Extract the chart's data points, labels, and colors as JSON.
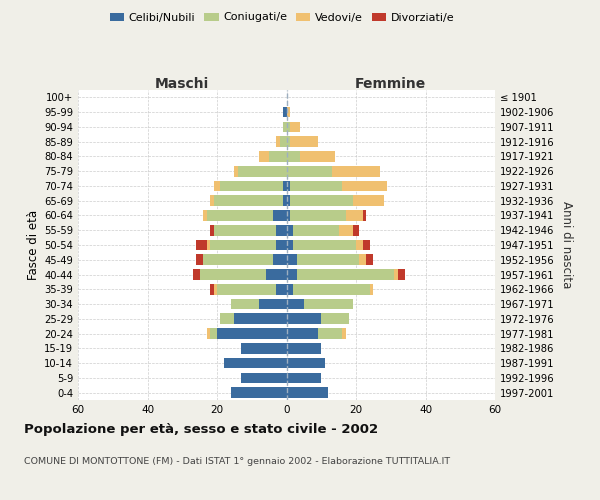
{
  "age_groups": [
    "0-4",
    "5-9",
    "10-14",
    "15-19",
    "20-24",
    "25-29",
    "30-34",
    "35-39",
    "40-44",
    "45-49",
    "50-54",
    "55-59",
    "60-64",
    "65-69",
    "70-74",
    "75-79",
    "80-84",
    "85-89",
    "90-94",
    "95-99",
    "100+"
  ],
  "birth_years": [
    "1997-2001",
    "1992-1996",
    "1987-1991",
    "1982-1986",
    "1977-1981",
    "1972-1976",
    "1967-1971",
    "1962-1966",
    "1957-1961",
    "1952-1956",
    "1947-1951",
    "1942-1946",
    "1937-1941",
    "1932-1936",
    "1927-1931",
    "1922-1926",
    "1917-1921",
    "1912-1916",
    "1907-1911",
    "1902-1906",
    "≤ 1901"
  ],
  "males": {
    "celibi": [
      16,
      13,
      18,
      13,
      20,
      15,
      8,
      3,
      6,
      4,
      3,
      3,
      4,
      1,
      1,
      0,
      0,
      0,
      0,
      1,
      0
    ],
    "coniugati": [
      0,
      0,
      0,
      0,
      2,
      4,
      8,
      17,
      19,
      20,
      19,
      18,
      19,
      20,
      18,
      14,
      5,
      2,
      1,
      0,
      0
    ],
    "vedovi": [
      0,
      0,
      0,
      0,
      1,
      0,
      0,
      1,
      0,
      0,
      1,
      0,
      1,
      1,
      2,
      1,
      3,
      1,
      0,
      0,
      0
    ],
    "divorziati": [
      0,
      0,
      0,
      0,
      0,
      0,
      0,
      1,
      2,
      2,
      3,
      1,
      0,
      0,
      0,
      0,
      0,
      0,
      0,
      0,
      0
    ]
  },
  "females": {
    "nubili": [
      12,
      10,
      11,
      10,
      9,
      10,
      5,
      2,
      3,
      3,
      2,
      2,
      1,
      1,
      1,
      0,
      0,
      0,
      0,
      0,
      0
    ],
    "coniugate": [
      0,
      0,
      0,
      0,
      7,
      8,
      14,
      22,
      28,
      18,
      18,
      13,
      16,
      18,
      15,
      13,
      4,
      1,
      1,
      0,
      0
    ],
    "vedove": [
      0,
      0,
      0,
      0,
      1,
      0,
      0,
      1,
      1,
      2,
      2,
      4,
      5,
      9,
      13,
      14,
      10,
      8,
      3,
      1,
      0
    ],
    "divorziate": [
      0,
      0,
      0,
      0,
      0,
      0,
      0,
      0,
      2,
      2,
      2,
      2,
      1,
      0,
      0,
      0,
      0,
      0,
      0,
      0,
      0
    ]
  },
  "colors": {
    "celibi": "#3a6b9e",
    "coniugati": "#b8cc8a",
    "vedovi": "#f0c070",
    "divorziati": "#c0392b"
  },
  "xlim": 60,
  "title": "Popolazione per età, sesso e stato civile - 2002",
  "subtitle": "COMUNE DI MONTOTTONE (FM) - Dati ISTAT 1° gennaio 2002 - Elaborazione TUTTITALIA.IT",
  "ylabel_left": "Fasce di età",
  "ylabel_right": "Anni di nascita",
  "xlabel_left": "Maschi",
  "xlabel_right": "Femmine",
  "bg_color": "#f0efe8",
  "plot_bg": "#ffffff"
}
